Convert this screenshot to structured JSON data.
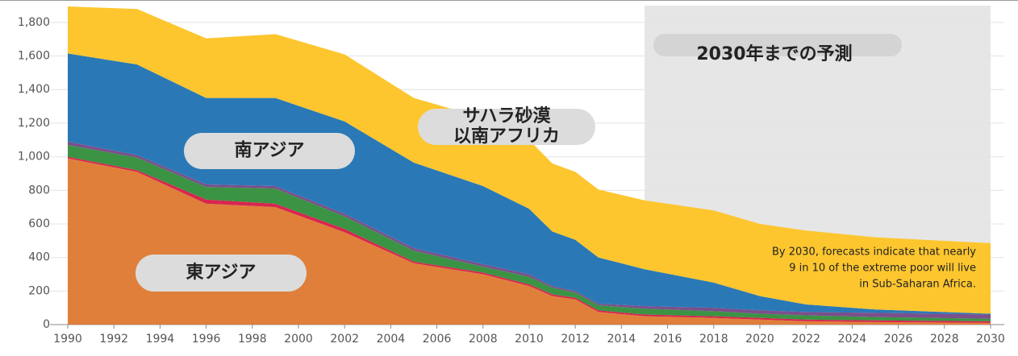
{
  "chart_data": {
    "type": "stacked_area",
    "x": [
      1990,
      1993,
      1996,
      1999,
      2002,
      2005,
      2008,
      2010,
      2011,
      2012,
      2013,
      2015,
      2018,
      2020,
      2022,
      2025,
      2030
    ],
    "series": [
      {
        "color": "#e07f3a",
        "values": [
          990,
          910,
          720,
          700,
          550,
          365,
          300,
          230,
          170,
          150,
          75,
          50,
          40,
          30,
          20,
          15,
          10
        ]
      },
      {
        "color": "#d7264f",
        "values": [
          10,
          10,
          25,
          20,
          20,
          10,
          10,
          10,
          10,
          10,
          10,
          10,
          10,
          10,
          10,
          10,
          10
        ]
      },
      {
        "color": "#3b9344",
        "values": [
          70,
          75,
          75,
          90,
          75,
          65,
          35,
          45,
          40,
          30,
          30,
          35,
          30,
          25,
          25,
          20,
          15
        ]
      },
      {
        "color": "#7b4f8c",
        "values": [
          20,
          15,
          15,
          15,
          15,
          15,
          15,
          15,
          10,
          10,
          10,
          15,
          20,
          20,
          20,
          25,
          25
        ]
      },
      {
        "color": "#2a79b6",
        "values": [
          525,
          540,
          515,
          525,
          550,
          510,
          465,
          390,
          325,
          305,
          275,
          220,
          150,
          85,
          45,
          20,
          5
        ]
      },
      {
        "color": "#fdc62f",
        "values": [
          280,
          330,
          355,
          380,
          400,
          385,
          405,
          410,
          405,
          405,
          405,
          410,
          430,
          430,
          440,
          430,
          420
        ]
      }
    ],
    "xlim": [
      1990,
      2030
    ],
    "xticks": [
      1990,
      1992,
      1994,
      1996,
      1998,
      2000,
      2002,
      2004,
      2006,
      2008,
      2010,
      2012,
      2014,
      2016,
      2018,
      2020,
      2022,
      2024,
      2026,
      2028,
      2030
    ],
    "ylim": [
      0,
      1900
    ],
    "yticks": [
      0,
      200,
      400,
      600,
      800,
      {
        "value": 1000,
        "label": "1,000"
      },
      {
        "value": 1200,
        "label": "1,200"
      },
      {
        "value": 1400,
        "label": "1,400"
      },
      {
        "value": 1600,
        "label": "1,600"
      },
      {
        "value": 1800,
        "label": "1,800"
      }
    ],
    "grid": true,
    "forecast_region": {
      "x": [
        2015,
        2030
      ],
      "color": "#e6e6e6",
      "label": "2030年までの予測"
    },
    "region_labels": [
      {
        "lines": [
          "東アジア"
        ]
      },
      {
        "lines": [
          "南アジア"
        ]
      },
      {
        "lines": [
          "サハラ砂漠",
          "以南アフリカ"
        ]
      }
    ],
    "note": [
      "By 2030, forecasts indicate that nearly",
      "9 in 10 of the extreme poor will live",
      "in Sub-Saharan Africa."
    ]
  }
}
